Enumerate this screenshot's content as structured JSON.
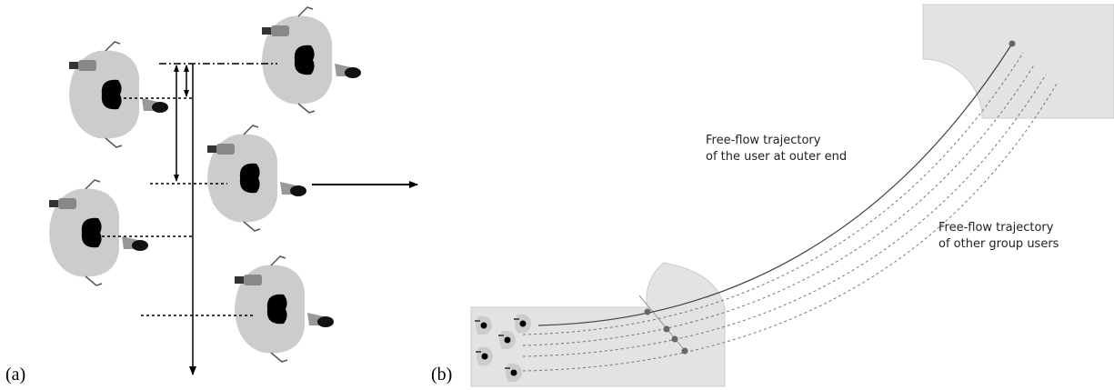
{
  "panels": [
    {
      "label": "(a)"
    },
    {
      "label": "(b)",
      "annotations": [
        {
          "lines": [
            "Free-flow trajectory",
            "of the user at outer end"
          ]
        },
        {
          "lines": [
            "Free-flow trajectory",
            "of other group users"
          ]
        }
      ]
    }
  ]
}
